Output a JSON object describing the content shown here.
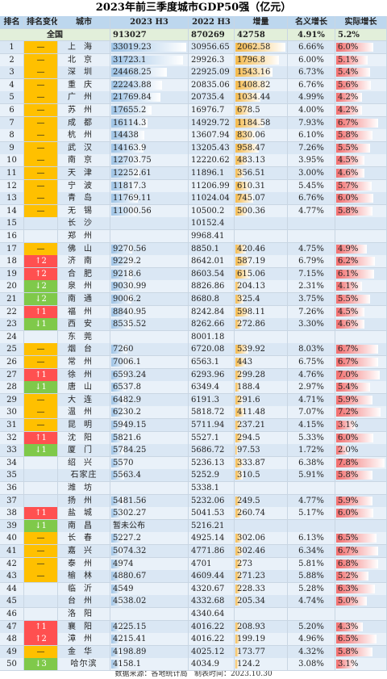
{
  "title": "2023年前三季度城市GDP50强（亿元）",
  "header": [
    "排名",
    "排名变化",
    "城市",
    "2023 H3",
    "2022 H3",
    "增量",
    "名义增长",
    "实际增长"
  ],
  "national": {
    "label": "全国",
    "values": [
      "913027",
      "870269",
      "42758",
      "4.91%",
      "5.2%"
    ]
  },
  "rows": [
    [
      "1",
      "—",
      "上海",
      "33019.23",
      "30956.65",
      "2062.58",
      "6.66%",
      "6.0%"
    ],
    [
      "2",
      "—",
      "北京",
      "31723.1",
      "29926.3",
      "1796.8",
      "6.00%",
      "5.1%"
    ],
    [
      "3",
      "—",
      "深圳",
      "24468.25",
      "22925.09",
      "1543.16",
      "6.73%",
      "5.4%"
    ],
    [
      "4",
      "—",
      "重庆",
      "22243.88",
      "20835.06",
      "1408.82",
      "6.76%",
      "5.6%"
    ],
    [
      "5",
      "—",
      "广州",
      "21769.84",
      "20735.4",
      "1034.44",
      "4.99%",
      "4.2%"
    ],
    [
      "6",
      "—",
      "苏州",
      "17655.2",
      "16976.7",
      "678.5",
      "4.00%",
      "4.2%"
    ],
    [
      "7",
      "—",
      "成都",
      "16114.3",
      "14929.72",
      "1184.58",
      "7.93%",
      "6.7%"
    ],
    [
      "8",
      "—",
      "杭州",
      "14438",
      "13607.94",
      "830.06",
      "6.10%",
      "5.8%"
    ],
    [
      "9",
      "—",
      "武汉",
      "14163.9",
      "13205.43",
      "958.47",
      "7.26%",
      "5.5%"
    ],
    [
      "10",
      "—",
      "南京",
      "12703.75",
      "12220.62",
      "483.13",
      "3.95%",
      "4.5%"
    ],
    [
      "11",
      "—",
      "天津",
      "12252.61",
      "11896.1",
      "356.51",
      "3.00%",
      "4.6%"
    ],
    [
      "12",
      "—",
      "宁波",
      "11817.3",
      "11206.99",
      "610.31",
      "5.45%",
      "5.7%"
    ],
    [
      "13",
      "—",
      "青岛",
      "11769.11",
      "11024.04",
      "745.07",
      "6.76%",
      "6.0%"
    ],
    [
      "14",
      "—",
      "无锡",
      "11000.56",
      "10500.2",
      "500.36",
      "4.77%",
      "5.8%"
    ],
    [
      "15",
      null,
      "长沙",
      null,
      "10152.4",
      null,
      null,
      null
    ],
    [
      "16",
      null,
      "郑州",
      null,
      "9968.41",
      null,
      null,
      null
    ],
    [
      "17",
      "—",
      "佛山",
      "9270.56",
      "8850.1",
      "420.46",
      "4.75%",
      "4.9%"
    ],
    [
      "18",
      "↑2",
      "济南",
      "9229.2",
      "8642.01",
      "587.19",
      "6.79%",
      "6.2%"
    ],
    [
      "19",
      "↑2",
      "合肥",
      "9218.6",
      "8603.54",
      "615.06",
      "7.15%",
      "6.1%"
    ],
    [
      "20",
      "↓2",
      "泉州",
      "9030.99",
      "8826.86",
      "204.13",
      "2.31%",
      "4.1%"
    ],
    [
      "21",
      "↓2",
      "南通",
      "9006.2",
      "8680.8",
      "325.4",
      "3.75%",
      "5.5%"
    ],
    [
      "22",
      "↑1",
      "福州",
      "8840.95",
      "8242.84",
      "598.11",
      "7.26%",
      "4.5%"
    ],
    [
      "23",
      "↓1",
      "西安",
      "8535.52",
      "8262.66",
      "272.86",
      "3.30%",
      "4.6%"
    ],
    [
      "24",
      null,
      "东莞",
      null,
      "8001.18",
      null,
      null,
      null
    ],
    [
      "25",
      "—",
      "烟台",
      "7260",
      "6720.08",
      "539.92",
      "8.03%",
      "6.7%"
    ],
    [
      "26",
      "—",
      "常州",
      "7006.1",
      "6563.1",
      "443",
      "6.75%",
      "6.7%"
    ],
    [
      "27",
      "↑1",
      "徐州",
      "6593.24",
      "6293.96",
      "299.28",
      "4.76%",
      "7.0%"
    ],
    [
      "28",
      "↓1",
      "唐山",
      "6537.8",
      "6349.4",
      "188.4",
      "2.97%",
      "5.4%"
    ],
    [
      "29",
      "—",
      "大连",
      "6482.9",
      "6191.3",
      "291.6",
      "4.71%",
      "5.9%"
    ],
    [
      "30",
      "—",
      "温州",
      "6230.2",
      "5818.72",
      "411.48",
      "7.07%",
      "7.2%"
    ],
    [
      "31",
      "—",
      "昆明",
      "5949.15",
      "5711.94",
      "237.21",
      "4.15%",
      "3.1%"
    ],
    [
      "32",
      "↑1",
      "沈阳",
      "5821.6",
      "5527.1",
      "294.5",
      "5.33%",
      "6.0%"
    ],
    [
      "33",
      "↓1",
      "厦门",
      "5784.25",
      "5686.72",
      "97.53",
      "1.72%",
      "2.0%"
    ],
    [
      "34",
      null,
      "绍兴",
      "5570",
      "5236.13",
      "333.87",
      "6.38%",
      "7.8%"
    ],
    [
      "35",
      null,
      "石家庄",
      "5563.4",
      "5252.9",
      "310.5",
      "5.91%",
      "5.8%"
    ],
    [
      "36",
      null,
      "潍坊",
      null,
      "5338.1",
      null,
      null,
      null
    ],
    [
      "37",
      null,
      "扬州",
      "5481.56",
      "5232.06",
      "249.5",
      "4.77%",
      "5.9%"
    ],
    [
      "38",
      "↑1",
      "盐城",
      "5302.27",
      "5041.53",
      "260.74",
      "5.17%",
      "6.0%"
    ],
    [
      "39",
      "↓1",
      "南昌",
      "暂未公布",
      "5216.21",
      null,
      null,
      null
    ],
    [
      "40",
      "—",
      "长春",
      "5227.2",
      "4925.14",
      "302.06",
      "6.13%",
      "6.5%"
    ],
    [
      "41",
      "—",
      "嘉兴",
      "5074.32",
      "4771.86",
      "302.46",
      "6.34%",
      "6.7%"
    ],
    [
      "42",
      "—",
      "泰州",
      "4974",
      "4701",
      "273",
      "5.81%",
      "6.8%"
    ],
    [
      "43",
      "—",
      "榆林",
      "4880.67",
      "4609.44",
      "271.23",
      "5.88%",
      "5.2%"
    ],
    [
      "44",
      null,
      "临沂",
      "4549",
      "4320.67",
      "228.33",
      "5.28%",
      "6.3%"
    ],
    [
      "45",
      null,
      "台州",
      "4538.02",
      "4332.68",
      "205.34",
      "4.74%",
      "5.0%"
    ],
    [
      "46",
      null,
      "洛阳",
      null,
      "4340.64",
      null,
      null,
      null
    ],
    [
      "47",
      "↑1",
      "襄阳",
      "4225.15",
      "4016.22",
      "208.93",
      "5.20%",
      "4.3%"
    ],
    [
      "48",
      "↑2",
      "漳州",
      "4215.41",
      "4016.22",
      "199.19",
      "4.96%",
      "6.5%"
    ],
    [
      "49",
      "—",
      "金华",
      "4198.89",
      "4025.12",
      "173.77",
      "4.32%",
      "5.8%"
    ],
    [
      "50",
      "↓3",
      "哈尔滨",
      "4158.1",
      "4034.9",
      "124.2",
      "3.08%",
      "3.1%"
    ]
  ],
  "footer": "数据来源：各地统计局   制表时间：2023.10.30"
}
